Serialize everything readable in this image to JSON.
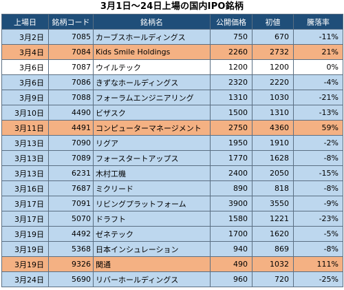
{
  "title": "3月1日〜24日上場の国内IPO銘柄",
  "colors": {
    "header": "#1f4e79",
    "row_blue": "#bdd7ee",
    "row_orange": "#f4b183",
    "row_white": "#ffffff"
  },
  "headers": [
    "上場日",
    "銘柄コード",
    "銘柄名",
    "公開価格",
    "初値",
    "騰落率"
  ],
  "rows": [
    {
      "date": "3月2日",
      "code": "7085",
      "name": "カーブスホールディングス",
      "ipo": "750",
      "open": "670",
      "rate": "-11%",
      "style": "blue"
    },
    {
      "date": "3月4日",
      "code": "7084",
      "name": "Kids Smile Holdings",
      "ipo": "2260",
      "open": "2732",
      "rate": "21%",
      "style": "orange"
    },
    {
      "date": "3月6日",
      "code": "7087",
      "name": "ウイルテック",
      "ipo": "1200",
      "open": "1200",
      "rate": "0%",
      "style": "white"
    },
    {
      "date": "3月6日",
      "code": "7086",
      "name": "きずなホールディングス",
      "ipo": "2320",
      "open": "2220",
      "rate": "-4%",
      "style": "blue"
    },
    {
      "date": "3月9日",
      "code": "7088",
      "name": "フォーラムエンジニアリング",
      "ipo": "1310",
      "open": "1030",
      "rate": "-21%",
      "style": "blue"
    },
    {
      "date": "3月10日",
      "code": "4490",
      "name": "ビザスク",
      "ipo": "1500",
      "open": "1310",
      "rate": "-13%",
      "style": "blue"
    },
    {
      "date": "3月11日",
      "code": "4491",
      "name": "コンピューターマネージメント",
      "ipo": "2750",
      "open": "4360",
      "rate": "59%",
      "style": "orange"
    },
    {
      "date": "3月13日",
      "code": "7090",
      "name": "リグア",
      "ipo": "1950",
      "open": "1910",
      "rate": "-2%",
      "style": "blue"
    },
    {
      "date": "3月13日",
      "code": "7089",
      "name": "フォースタートアップス",
      "ipo": "1770",
      "open": "1628",
      "rate": "-8%",
      "style": "blue"
    },
    {
      "date": "3月13日",
      "code": "6231",
      "name": "木村工機",
      "ipo": "2400",
      "open": "2050",
      "rate": "-15%",
      "style": "blue"
    },
    {
      "date": "3月16日",
      "code": "7687",
      "name": "ミクリード",
      "ipo": "890",
      "open": "818",
      "rate": "-8%",
      "style": "blue"
    },
    {
      "date": "3月17日",
      "code": "7091",
      "name": "リビングプラットフォーム",
      "ipo": "3900",
      "open": "3550",
      "rate": "-9%",
      "style": "blue"
    },
    {
      "date": "3月17日",
      "code": "5070",
      "name": "ドラフト",
      "ipo": "1580",
      "open": "1221",
      "rate": "-23%",
      "style": "blue"
    },
    {
      "date": "3月19日",
      "code": "4492",
      "name": "ゼネテック",
      "ipo": "1700",
      "open": "1620",
      "rate": "-5%",
      "style": "blue"
    },
    {
      "date": "3月19日",
      "code": "5368",
      "name": "日本インシュレーション",
      "ipo": "940",
      "open": "869",
      "rate": "-8%",
      "style": "blue"
    },
    {
      "date": "3月19日",
      "code": "9326",
      "name": "関通",
      "ipo": "490",
      "open": "1032",
      "rate": "111%",
      "style": "orange"
    },
    {
      "date": "3月24日",
      "code": "5690",
      "name": "リバーホールディングス",
      "ipo": "960",
      "open": "720",
      "rate": "-25%",
      "style": "blue"
    }
  ]
}
